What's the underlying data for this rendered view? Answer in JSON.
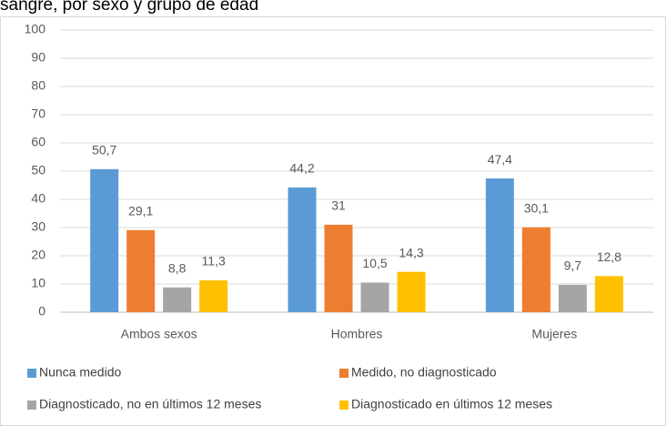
{
  "chart_data": {
    "type": "bar",
    "title": "sangre, por sexo y grupo de edad",
    "categories": [
      "Ambos sexos",
      "Hombres",
      "Mujeres"
    ],
    "series": [
      {
        "name": "Nunca medido",
        "color": "#5b9bd5",
        "values": [
          50.7,
          44.2,
          47.4
        ],
        "value_labels": [
          "50,7",
          "44,2",
          "47,4"
        ]
      },
      {
        "name": "Medido, no diagnosticado",
        "color": "#ed7d31",
        "values": [
          29.1,
          31,
          30.1
        ],
        "value_labels": [
          "29,1",
          "31",
          "30,1"
        ]
      },
      {
        "name": "Diagnosticado, no en últimos 12 meses",
        "color": "#a5a5a5",
        "values": [
          8.8,
          10.5,
          9.7
        ],
        "value_labels": [
          "8,8",
          "10,5",
          "9,7"
        ]
      },
      {
        "name": "Diagnosticado en últimos 12 meses",
        "color": "#ffc000",
        "values": [
          11.3,
          14.3,
          12.8
        ],
        "value_labels": [
          "11,3",
          "14,3",
          "12,8"
        ]
      }
    ],
    "ylim": [
      0,
      100
    ],
    "yticks": [
      0,
      10,
      20,
      30,
      40,
      50,
      60,
      70,
      80,
      90,
      100
    ],
    "grid": true,
    "legend": "bottom"
  }
}
